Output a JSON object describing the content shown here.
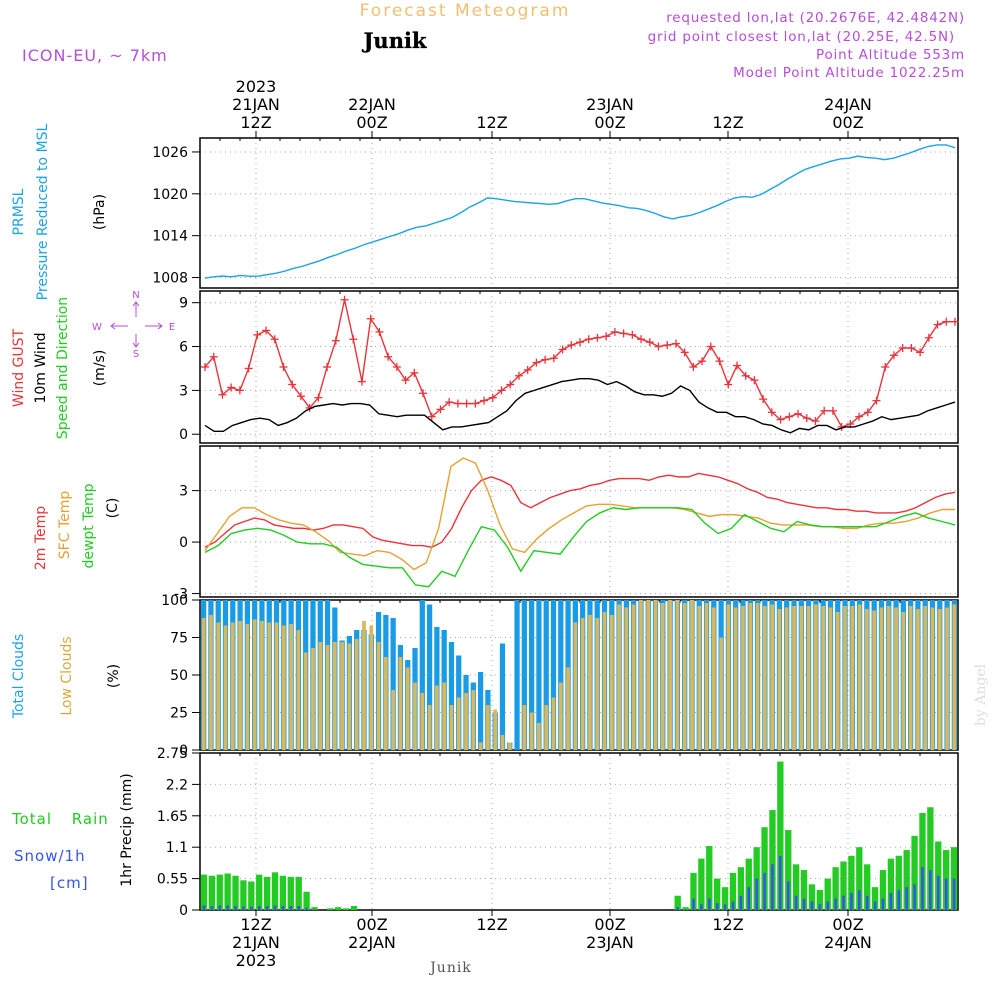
{
  "header": {
    "title": "Forecast Meteogram",
    "location": "Junik",
    "model": "ICON-EU, ~ 7km",
    "requested": "requested lon,lat (20.2676E, 42.4842N)",
    "gridpoint": "grid point closest lon,lat (20.25E, 42.5N)",
    "altitude": "Point Altitude 553m",
    "model_altitude": "Model Point Altitude 1022.25m",
    "footer_location": "Junik",
    "credit": "by Angel"
  },
  "colors": {
    "pressure": "#1ba3e8",
    "gust": "#e8343a",
    "wind": "#000000",
    "temp2m": "#e8343a",
    "sfc": "#e8a030",
    "dewpt": "#22cc22",
    "total_clouds": "#1a9be6",
    "low_clouds": "#d9b85c",
    "rain": "#22cc22",
    "snow": "#3355ee",
    "purple": "#b44fd6",
    "title_orange": "#f0c070"
  },
  "chart_data": [
    {
      "panel": "pressure",
      "type": "line",
      "ylabel_1": "PRMSL",
      "ylabel_2": "Pressure Reduced to MSL",
      "unit": "(hPa)",
      "ylim": [
        1006.5,
        1028
      ],
      "yticks": [
        1008,
        1014,
        1020,
        1026
      ],
      "series": [
        {
          "name": "PRMSL",
          "values": [
            1007.9,
            1008.1,
            1008.2,
            1008.1,
            1008.3,
            1008.2,
            1008.2,
            1008.4,
            1008.6,
            1008.9,
            1009.3,
            1009.6,
            1010.0,
            1010.4,
            1010.9,
            1011.3,
            1011.8,
            1012.2,
            1012.7,
            1013.1,
            1013.5,
            1013.9,
            1014.3,
            1014.8,
            1015.2,
            1015.4,
            1015.8,
            1016.2,
            1016.6,
            1017.3,
            1018.1,
            1018.7,
            1019.4,
            1019.3,
            1019.1,
            1018.9,
            1018.8,
            1018.7,
            1018.6,
            1018.5,
            1018.6,
            1019.0,
            1019.3,
            1019.3,
            1019.0,
            1018.7,
            1018.5,
            1018.3,
            1018.0,
            1017.9,
            1017.6,
            1017.2,
            1016.7,
            1016.4,
            1016.7,
            1016.9,
            1017.3,
            1017.8,
            1018.3,
            1018.9,
            1019.4,
            1019.6,
            1019.5,
            1019.9,
            1020.6,
            1021.3,
            1022.1,
            1022.8,
            1023.5,
            1023.9,
            1024.3,
            1024.7,
            1025.0,
            1025.1,
            1025.4,
            1025.2,
            1025.1,
            1024.9,
            1025.1,
            1025.5,
            1025.9,
            1026.4,
            1026.8,
            1027.0,
            1027.0,
            1026.6
          ]
        }
      ]
    },
    {
      "panel": "wind",
      "type": "line",
      "ylabel_1": "Wind GUST",
      "ylabel_2": "10m Wind",
      "ylabel_3": "Speed and Direction",
      "unit": "(m/s)",
      "compass": {
        "n": "N",
        "s": "S",
        "w": "W",
        "e": "E"
      },
      "ylim": [
        -0.6,
        9.8
      ],
      "yticks": [
        0,
        3,
        6,
        9
      ],
      "series": [
        {
          "name": "Wind GUST",
          "values": [
            4.6,
            5.3,
            2.7,
            3.2,
            3.0,
            4.5,
            6.8,
            7.1,
            6.5,
            4.6,
            3.4,
            2.6,
            1.8,
            2.5,
            4.6,
            6.4,
            9.2,
            6.5,
            3.6,
            7.9,
            7.0,
            5.3,
            4.6,
            3.7,
            4.2,
            2.8,
            1.2,
            1.7,
            2.2,
            2.1,
            2.1,
            2.1,
            2.3,
            2.5,
            3.0,
            3.4,
            4.0,
            4.4,
            4.9,
            5.1,
            5.2,
            5.8,
            6.1,
            6.3,
            6.5,
            6.6,
            6.7,
            7.0,
            6.9,
            6.8,
            6.5,
            6.3,
            6.0,
            6.1,
            6.2,
            5.6,
            4.6,
            5.0,
            6.0,
            5.0,
            3.4,
            4.7,
            4.0,
            3.7,
            2.4,
            1.5,
            1.0,
            1.2,
            1.4,
            1.1,
            0.9,
            1.6,
            1.6,
            0.5,
            0.7,
            1.2,
            1.5,
            2.3,
            4.6,
            5.4,
            5.9,
            5.9,
            5.6,
            6.6,
            7.5,
            7.7,
            7.7
          ]
        },
        {
          "name": "10m Wind",
          "values": [
            0.6,
            0.2,
            0.2,
            0.6,
            0.8,
            1.0,
            1.1,
            1.0,
            0.6,
            0.8,
            1.1,
            1.6,
            1.9,
            2.0,
            2.1,
            2.0,
            2.1,
            2.1,
            2.0,
            1.4,
            1.3,
            1.2,
            1.3,
            1.3,
            1.3,
            0.8,
            0.3,
            0.5,
            0.5,
            0.6,
            0.7,
            0.8,
            1.2,
            1.6,
            2.3,
            2.8,
            3.0,
            3.2,
            3.4,
            3.6,
            3.7,
            3.8,
            3.8,
            3.7,
            3.4,
            3.6,
            3.3,
            2.9,
            2.7,
            2.7,
            2.6,
            2.8,
            3.3,
            3.0,
            2.2,
            1.8,
            1.5,
            1.5,
            1.2,
            1.2,
            1.0,
            0.7,
            0.6,
            0.3,
            0.1,
            0.4,
            0.3,
            0.6,
            0.6,
            0.3,
            0.5,
            0.5,
            0.7,
            0.9,
            1.2,
            1.0,
            1.1,
            1.2,
            1.3,
            1.6,
            1.8,
            2.0,
            2.2
          ]
        }
      ]
    },
    {
      "panel": "temperature",
      "type": "line",
      "ylabel_1": "2m Temp",
      "ylabel_2": "SFC Temp",
      "ylabel_3": "dewpt Temp",
      "unit": "(C)",
      "ylim": [
        -3.2,
        5.6
      ],
      "yticks": [
        -3,
        0,
        3
      ],
      "series": [
        {
          "name": "2m Temp",
          "values": [
            -0.3,
            0.0,
            0.5,
            1.0,
            1.2,
            1.4,
            1.3,
            1.0,
            0.9,
            0.8,
            0.8,
            0.7,
            0.8,
            1.0,
            1.0,
            0.9,
            0.8,
            0.3,
            0.1,
            0.0,
            -0.1,
            -0.2,
            -0.2,
            -0.3,
            0.0,
            0.8,
            2.0,
            3.0,
            3.6,
            3.8,
            3.6,
            3.3,
            2.3,
            2.0,
            2.3,
            2.6,
            2.8,
            3.0,
            3.1,
            3.3,
            3.4,
            3.6,
            3.7,
            3.7,
            3.7,
            3.6,
            3.8,
            3.9,
            3.8,
            3.8,
            4.0,
            3.9,
            3.8,
            3.6,
            3.4,
            3.1,
            2.9,
            2.6,
            2.5,
            2.3,
            2.2,
            2.1,
            2.0,
            2.0,
            1.9,
            1.9,
            1.8,
            1.8,
            1.7,
            1.7,
            1.7,
            1.8,
            2.0,
            2.3,
            2.6,
            2.8,
            2.9
          ]
        },
        {
          "name": "SFC Temp",
          "values": [
            -0.5,
            0.5,
            1.5,
            2.0,
            2.0,
            1.6,
            1.3,
            1.1,
            1.0,
            0.6,
            0.1,
            -0.6,
            -0.7,
            -0.8,
            -0.5,
            -0.6,
            -1.0,
            -1.6,
            -1.2,
            0.8,
            4.4,
            4.9,
            4.6,
            3.0,
            1.0,
            -0.4,
            -0.6,
            0.2,
            0.8,
            1.3,
            1.7,
            2.1,
            2.2,
            2.2,
            2.1,
            2.0,
            2.0,
            2.0,
            2.0,
            1.9,
            1.7,
            1.5,
            1.6,
            1.6,
            1.5,
            1.4,
            1.1,
            1.0,
            1.0,
            1.0,
            0.9,
            0.9,
            0.8,
            0.8,
            1.0,
            1.1,
            1.1,
            1.2,
            1.4,
            1.7,
            1.9,
            1.9
          ]
        },
        {
          "name": "dewpt Temp",
          "values": [
            -0.6,
            -0.2,
            0.5,
            0.7,
            0.8,
            0.7,
            0.4,
            0.0,
            -0.1,
            -0.1,
            -0.3,
            -0.9,
            -1.3,
            -1.4,
            -1.5,
            -1.5,
            -2.5,
            -2.6,
            -1.7,
            -2.0,
            -0.5,
            0.9,
            0.7,
            -0.3,
            -1.7,
            -0.5,
            -0.6,
            -0.7,
            0.3,
            1.2,
            1.7,
            2.0,
            1.9,
            2.0,
            2.0,
            2.0,
            2.0,
            1.9,
            1.1,
            0.5,
            0.8,
            1.6,
            1.2,
            0.8,
            0.6,
            1.2,
            1.0,
            0.9,
            0.9,
            0.9,
            0.9,
            0.9,
            1.2,
            1.5,
            1.7,
            1.4,
            1.2,
            1.0
          ]
        }
      ]
    },
    {
      "panel": "clouds",
      "type": "bar",
      "ylabel_1": "Total Clouds",
      "ylabel_2": "Low Clouds",
      "unit": "(%)",
      "ylim": [
        0,
        100
      ],
      "yticks": [
        0,
        25,
        50,
        75,
        100
      ],
      "series": [
        {
          "name": "Total Clouds",
          "values": [
            100,
            100,
            100,
            100,
            100,
            100,
            100,
            100,
            100,
            100,
            100,
            100,
            100,
            100,
            100,
            100,
            100,
            100,
            95,
            73,
            76,
            80,
            80,
            77,
            92,
            90,
            88,
            70,
            60,
            68,
            100,
            97,
            82,
            80,
            72,
            63,
            50,
            45,
            52,
            40,
            25,
            71,
            5,
            100,
            100,
            100,
            100,
            100,
            100,
            100,
            100,
            100,
            100,
            100,
            100,
            100,
            100,
            100,
            100,
            100,
            100,
            100,
            100,
            100,
            100,
            100,
            100,
            100,
            100,
            100,
            100,
            100,
            100,
            100,
            100,
            100,
            100,
            100,
            100,
            100,
            100,
            100,
            100,
            100,
            100,
            100,
            100,
            100,
            100,
            100,
            100,
            100,
            100,
            100,
            100,
            100,
            100,
            100,
            100,
            100,
            100,
            100,
            100,
            100
          ]
        },
        {
          "name": "Low Clouds",
          "values": [
            88,
            90,
            85,
            83,
            85,
            86,
            84,
            87,
            86,
            85,
            85,
            83,
            84,
            80,
            65,
            68,
            72,
            70,
            72,
            72,
            71,
            74,
            86,
            83,
            72,
            62,
            40,
            62,
            55,
            45,
            38,
            30,
            43,
            45,
            30,
            35,
            38,
            40,
            5,
            30,
            27,
            10,
            5,
            0,
            30,
            25,
            18,
            30,
            35,
            45,
            55,
            85,
            88,
            90,
            88,
            92,
            90,
            97,
            95,
            97,
            100,
            100,
            100,
            98,
            100,
            100,
            98,
            100,
            96,
            98,
            95,
            75,
            97,
            95,
            96,
            98,
            98,
            96,
            97,
            94,
            95,
            96,
            96,
            96,
            97,
            96,
            95,
            92,
            96,
            96,
            97,
            94,
            93,
            95,
            96,
            95,
            92,
            96,
            94,
            96,
            95,
            94,
            95,
            97
          ]
        }
      ]
    },
    {
      "panel": "precip",
      "type": "bar",
      "ylabel_1": "Total Rain",
      "ylabel_2": "Snow/1h",
      "ylabel_3": "[cm]",
      "unit": "1hr Precip (mm)",
      "ylim": [
        0,
        2.75
      ],
      "yticks": [
        0,
        0.55,
        1.1,
        1.65,
        2.2,
        2.75
      ],
      "ytick_labels": [
        "0",
        "0.55",
        "1.1",
        "1.65",
        "2.2",
        "2.75"
      ],
      "series": [
        {
          "name": "Total Rain",
          "values": [
            0.62,
            0.6,
            0.62,
            0.64,
            0.6,
            0.52,
            0.5,
            0.62,
            0.58,
            0.66,
            0.6,
            0.58,
            0.58,
            0.32,
            0.05,
            0.0,
            0.03,
            0.05,
            0.03,
            0.07,
            0,
            0,
            0,
            0,
            0,
            0,
            0,
            0,
            0,
            0,
            0,
            0,
            0,
            0,
            0,
            0,
            0,
            0,
            0,
            0,
            0,
            0,
            0,
            0,
            0,
            0,
            0,
            0,
            0,
            0,
            0,
            0,
            0,
            0,
            0,
            0,
            0,
            0,
            0,
            0,
            0.25,
            0.05,
            0.65,
            0.9,
            1.12,
            0.55,
            0.4,
            0.65,
            0.75,
            0.9,
            1.1,
            1.45,
            1.75,
            2.6,
            1.4,
            0.8,
            0.7,
            0.45,
            0.35,
            0.55,
            0.75,
            0.85,
            0.95,
            1.1,
            0.8,
            0.4,
            0.7,
            0.9,
            0.95,
            1.05,
            1.3,
            1.7,
            1.8,
            1.2,
            1.05,
            1.1
          ]
        },
        {
          "name": "Snow/1h",
          "values": [
            0.08,
            0.07,
            0.08,
            0.08,
            0.07,
            0.06,
            0.06,
            0.07,
            0.07,
            0.08,
            0.07,
            0.07,
            0.07,
            0.04,
            0.01,
            0,
            0,
            0,
            0,
            0,
            0,
            0,
            0,
            0,
            0,
            0,
            0,
            0,
            0,
            0,
            0,
            0,
            0,
            0,
            0,
            0,
            0,
            0,
            0,
            0,
            0,
            0,
            0,
            0,
            0,
            0,
            0,
            0,
            0,
            0,
            0,
            0,
            0,
            0,
            0,
            0,
            0,
            0,
            0,
            0,
            0.05,
            0.01,
            0.2,
            0.1,
            0.2,
            0.12,
            0.1,
            0.15,
            0.25,
            0.4,
            0.55,
            0.65,
            0.8,
            0.95,
            0.5,
            0.25,
            0.2,
            0.15,
            0.1,
            0.15,
            0.2,
            0.25,
            0.3,
            0.35,
            0.25,
            0.15,
            0.2,
            0.3,
            0.35,
            0.4,
            0.45,
            0.75,
            0.7,
            0.6,
            0.55,
            0.55
          ]
        }
      ]
    }
  ],
  "time_axis": {
    "top_labels": [
      {
        "l1": "2023",
        "l2": "21JAN",
        "l3": "12Z"
      },
      {
        "l1": "",
        "l2": "22JAN",
        "l3": "00Z"
      },
      {
        "l1": "",
        "l2": "",
        "l3": "12Z"
      },
      {
        "l1": "",
        "l2": "23JAN",
        "l3": "00Z"
      },
      {
        "l1": "",
        "l2": "",
        "l3": "12Z"
      },
      {
        "l1": "",
        "l2": "24JAN",
        "l3": "00Z"
      }
    ],
    "bottom_labels": [
      {
        "l1": "12Z",
        "l2": "21JAN",
        "l3": "2023"
      },
      {
        "l1": "00Z",
        "l2": "22JAN",
        "l3": ""
      },
      {
        "l1": "12Z",
        "l2": "",
        "l3": ""
      },
      {
        "l1": "00Z",
        "l2": "23JAN",
        "l3": ""
      },
      {
        "l1": "12Z",
        "l2": "",
        "l3": ""
      },
      {
        "l1": "00Z",
        "l2": "24JAN",
        "l3": ""
      }
    ]
  }
}
